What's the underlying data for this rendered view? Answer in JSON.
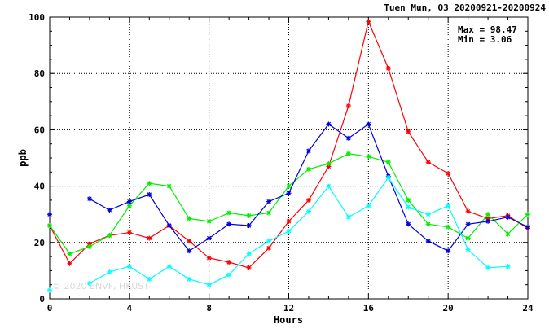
{
  "chart_data": {
    "type": "line",
    "title": "Tuen Mun, O3 20200921-20200924",
    "xlabel": "Hours",
    "ylabel": "ppb",
    "xlim": [
      0,
      24
    ],
    "ylim": [
      0,
      100
    ],
    "xticks": [
      0,
      4,
      8,
      12,
      16,
      20,
      24
    ],
    "yticks": [
      0,
      20,
      40,
      60,
      80,
      100
    ],
    "grid": true,
    "stats": {
      "max_text": "Max = 98.47",
      "min_text": "Min =  3.06"
    },
    "watermark": "© 2020 ENVF, HKUST",
    "x": [
      0,
      1,
      2,
      3,
      4,
      5,
      6,
      7,
      8,
      9,
      10,
      11,
      12,
      13,
      14,
      15,
      16,
      17,
      18,
      19,
      20,
      21,
      22,
      23,
      24
    ],
    "series": [
      {
        "color": "#ff0000",
        "values": [
          26.0,
          12.5,
          19.5,
          22.5,
          23.5,
          21.5,
          26.0,
          20.5,
          14.5,
          13.0,
          11.0,
          18.0,
          27.5,
          35.0,
          47.0,
          68.5,
          98.47,
          81.8,
          59.3,
          48.5,
          44.5,
          31.0,
          28.5,
          29.5,
          25.0
        ]
      },
      {
        "color": "#00ee00",
        "values": [
          26.0,
          16.0,
          18.5,
          22.5,
          33.0,
          41.0,
          40.0,
          28.5,
          27.5,
          30.5,
          29.5,
          30.5,
          40.0,
          46.0,
          48.0,
          51.5,
          50.5,
          48.5,
          35.0,
          26.5,
          25.5,
          21.5,
          30.0,
          23.0,
          30.0
        ]
      },
      {
        "color": "#0000dd",
        "values": [
          30.0,
          null,
          35.5,
          31.5,
          34.5,
          37.0,
          26.0,
          17.0,
          21.5,
          26.5,
          26.0,
          34.5,
          37.5,
          52.5,
          62.0,
          57.0,
          62.0,
          43.5,
          26.5,
          20.5,
          17.0,
          26.5,
          27.5,
          29.0,
          25.5
        ]
      },
      {
        "color": "#00ffff",
        "values": [
          3.06,
          null,
          5.5,
          9.5,
          11.5,
          7.0,
          11.5,
          7.0,
          5.0,
          8.5,
          16.0,
          20.5,
          24.0,
          31.0,
          40.0,
          29.0,
          33.0,
          43.0,
          32.5,
          30.0,
          33.0,
          17.5,
          11.0,
          11.5,
          null
        ]
      }
    ]
  }
}
